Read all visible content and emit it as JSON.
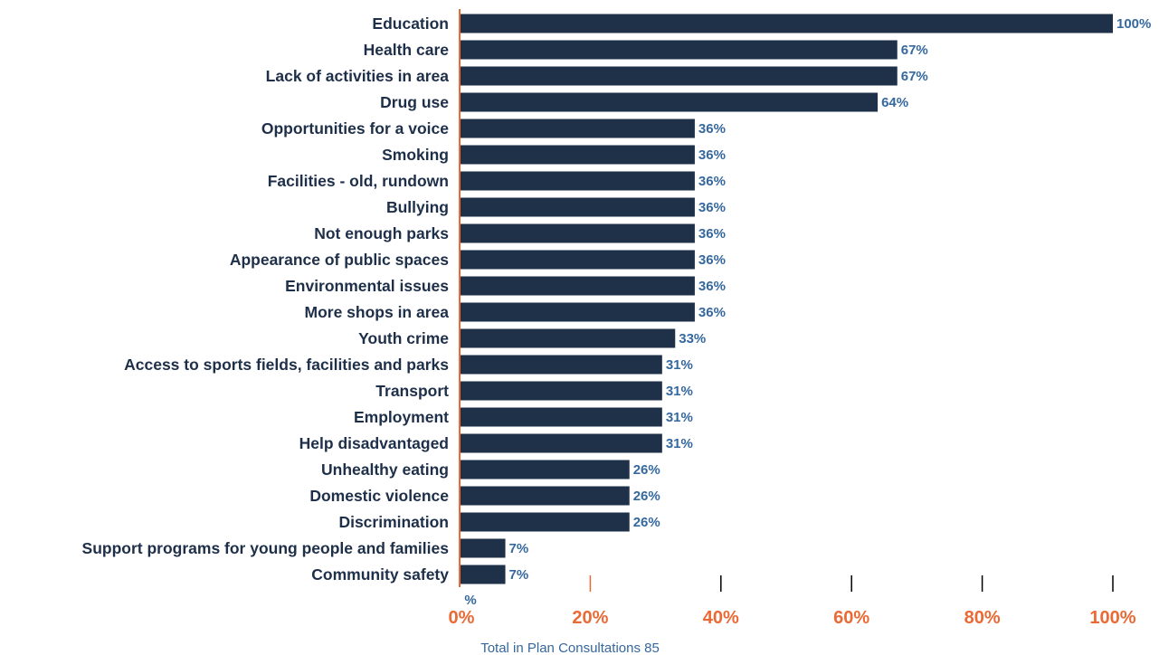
{
  "chart_data": {
    "type": "bar",
    "orientation": "horizontal",
    "categories": [
      "Education",
      "Health care",
      "Lack of activities in area",
      "Drug use",
      "Opportunities for a voice",
      "Smoking",
      "Facilities - old, rundown",
      "Bullying",
      "Not enough parks",
      "Appearance of public spaces",
      "Environmental issues",
      "More shops in area",
      "Youth crime",
      "Access to sports fields, facilities and parks",
      "Transport",
      "Employment",
      "Help disadvantaged",
      "Unhealthy eating",
      "Domestic violence",
      "Discrimination",
      "Support programs for young people and families",
      "Community safety"
    ],
    "values": [
      100,
      67,
      67,
      64,
      36,
      36,
      36,
      36,
      36,
      36,
      36,
      36,
      33,
      31,
      31,
      31,
      31,
      26,
      26,
      26,
      7,
      7
    ],
    "value_labels": [
      "100%",
      "67%",
      "67%",
      "64%",
      "36%",
      "36%",
      "36%",
      "36%",
      "36%",
      "36%",
      "36%",
      "36%",
      "33%",
      "31%",
      "31%",
      "31%",
      "31%",
      "26%",
      "26%",
      "26%",
      "7%",
      "7%"
    ],
    "xlim": [
      0,
      100
    ],
    "x_ticks": [
      0,
      20,
      40,
      60,
      80,
      100
    ],
    "x_tick_labels": [
      "0%",
      "20%",
      "40%",
      "60%",
      "80%",
      "100%"
    ],
    "unit_label": "%",
    "footnote": "Total in Plan Consultations 85",
    "grid": false,
    "legend": "none",
    "colors": {
      "bar": "#1e3148",
      "category_text": "#1e2f49",
      "value_text": "#35689e",
      "axis": "#ea6a36",
      "tick_text": "#ea6a36",
      "tick_mark": "#000000"
    }
  }
}
